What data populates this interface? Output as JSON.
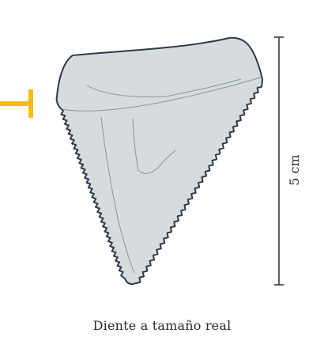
{
  "colors": {
    "tooth_fill": "#d6dbde",
    "tooth_outline": "#2f3a4a",
    "detail_lines": "#8a949c",
    "scale_bar": "#2f3a4a",
    "marker": "#f2bd1a"
  },
  "scale": {
    "label": "5 cm"
  },
  "caption": "Diente a tamaño real"
}
